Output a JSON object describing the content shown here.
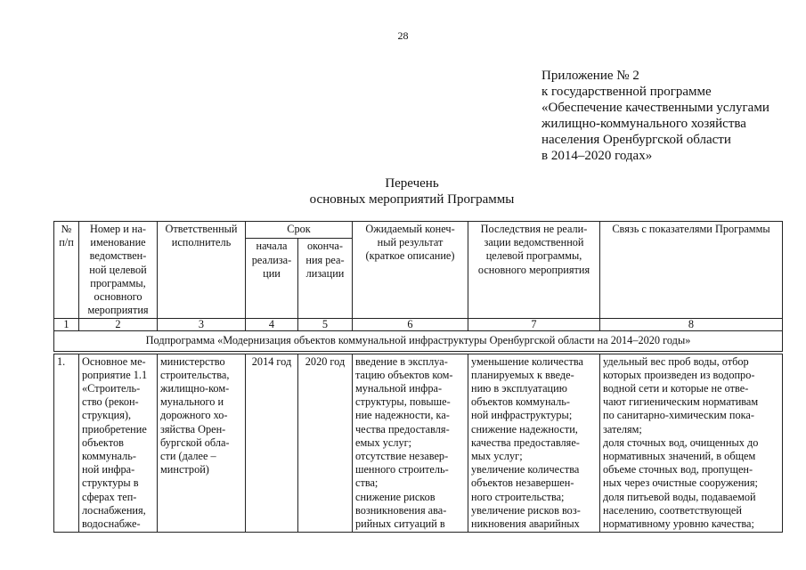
{
  "page_number": "28",
  "appendix": "Приложение № 2\nк государственной программе\n«Обеспечение качественными услугами\nжилищно-коммунального хозяйства\nнаселения Оренбургской области\nв 2014–2020 годах»",
  "title": "Перечень\nосновных мероприятий Программы",
  "table": {
    "headers": {
      "col1": "№\nп/п",
      "col2": "Номер и на-\nименование\nведомствен-\nной целевой\nпрограммы,\nосновного\nмероприятия",
      "col3": "Ответственный\nисполнитель",
      "srok": "Срок",
      "col4": "начала\nреализа-\nции",
      "col5": "оконча-\nния реа-\nлизации",
      "col6": "Ожидаемый конеч-\nный результат\n(краткое описание)",
      "col7": "Последствия не реали-\nзации ведомственной\nцелевой программы,\nосновного мероприятия",
      "col8": "Связь с показателями Программы"
    },
    "column_numbers": [
      "1",
      "2",
      "3",
      "4",
      "5",
      "6",
      "7",
      "8"
    ],
    "subprogram": "Подпрограмма «Модернизация объектов коммунальной инфраструктуры Оренбургской области на 2014–2020 годы»",
    "rows": [
      {
        "no": "1.",
        "name": "Основное ме-\nроприятие 1.1\n«Строитель-\nство (рекон-\nструкция),\nприобретение\nобъектов\nкоммуналь-\nной инфра-\nструктуры в\nсферах теп-\nлоснабжения,\nводоснабже-",
        "executor": "министерство\nстроительства,\nжилищно-ком-\nмунального и\nдорожного хо-\nзяйства Орен-\nбургской обла-\nсти (далее –\nминстрой)",
        "start": "2014 год",
        "end": "2020 год",
        "result": "введение в эксплуа-\nтацию объектов ком-\nмунальной инфра-\nструктуры, повыше-\nние надежности, ка-\nчества предоставля-\nемых услуг;\nотсутствие незавер-\nшенного строитель-\nства;\nснижение рисков\nвозникновения ава-\nрийных ситуаций в",
        "consequences": "уменьшение количества\nпланируемых к введе-\nнию в эксплуатацию\nобъектов коммуналь-\nной инфраструктуры;\nснижение надежности,\nкачества предоставляе-\nмых услуг;\nувеличение количества\nобъектов незавершен-\nного строительства;\nувеличение рисков воз-\nникновения аварийных",
        "indicators": "удельный вес проб воды, отбор\nкоторых произведен из водопро-\nводной сети и которые не отве-\nчают гигиеническим нормативам\nпо санитарно-химическим пока-\nзателям;\nдоля сточных вод, очищенных до\nнормативных значений, в общем\nобъеме сточных вод, пропущен-\nных через очистные сооружения;\nдоля питьевой воды, подаваемой\nнаселению, соответствующей\nнормативному уровню качества;"
      }
    ]
  }
}
